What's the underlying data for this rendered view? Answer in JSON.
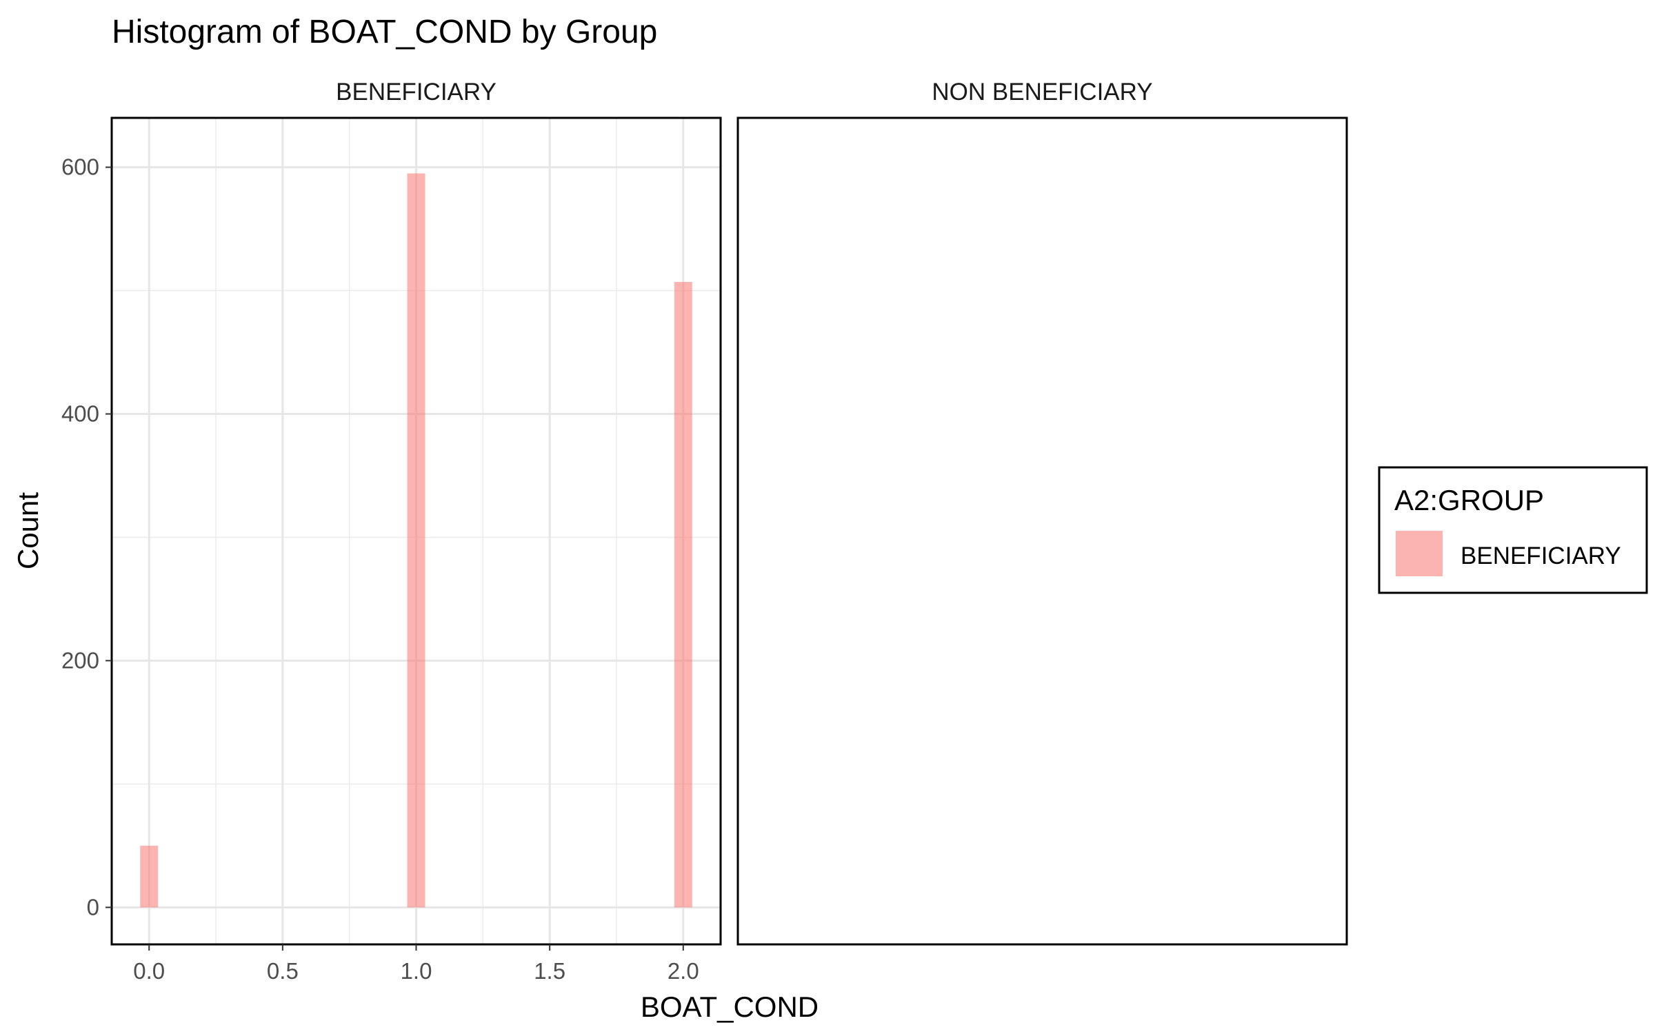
{
  "chart_data": {
    "type": "bar",
    "title": "Histogram of BOAT_COND by Group",
    "xlabel": "BOAT_COND",
    "ylabel": "Count",
    "xlim": [
      -0.14,
      2.14
    ],
    "ylim": [
      -30,
      640
    ],
    "x_ticks": [
      0.0,
      0.5,
      1.0,
      1.5,
      2.0
    ],
    "x_tick_labels": [
      "0.0",
      "0.5",
      "1.0",
      "1.5",
      "2.0"
    ],
    "y_ticks": [
      0,
      200,
      400,
      600
    ],
    "y_tick_labels": [
      "0",
      "200",
      "400",
      "600"
    ],
    "y_minor": [
      100,
      300,
      500
    ],
    "bin_width": 0.067,
    "grid": true,
    "legend_position": "right",
    "bar_color": "#f8766d",
    "panels": [
      {
        "label": "BENEFICIARY",
        "series": [
          {
            "name": "BENEFICIARY",
            "x": [
              0.0,
              1.0,
              2.0
            ],
            "values": [
              50,
              595,
              507
            ]
          }
        ]
      },
      {
        "label": "NON BENEFICIARY",
        "series": []
      }
    ],
    "legend": {
      "title": "A2:GROUP",
      "entries": [
        {
          "label": "BENEFICIARY",
          "color": "#f8766d"
        }
      ]
    }
  }
}
